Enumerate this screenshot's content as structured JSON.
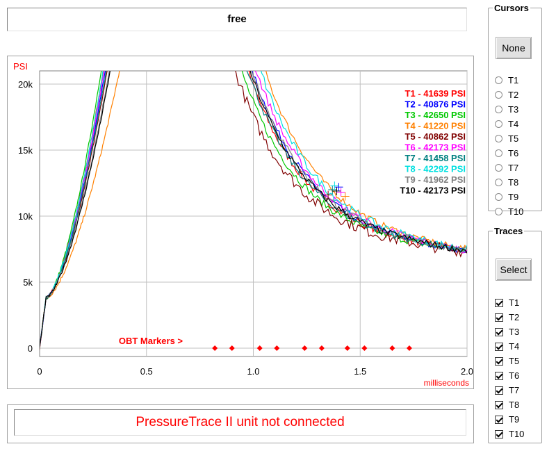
{
  "title": "free",
  "status_message": "PressureTrace II unit not connected",
  "chart": {
    "y_unit_label": "PSI",
    "x_unit_label": "milliseconds",
    "y_ticks": [
      "0",
      "5k",
      "10k",
      "15k",
      "20k"
    ],
    "x_ticks": [
      "0",
      "0.5",
      "1.0",
      "1.5",
      "2.0"
    ],
    "obt_markers_label": "OBT Markers >",
    "obt_marker_positions_ms": [
      0.82,
      0.9,
      1.03,
      1.11,
      1.24,
      1.32,
      1.44,
      1.52,
      1.65,
      1.73
    ],
    "colors": {
      "grid": "#c0c0c0",
      "axis": "#000000",
      "label_red": "#ff0000",
      "marker": "#ff0000"
    }
  },
  "chart_data": {
    "type": "line",
    "xlabel": "milliseconds",
    "ylabel": "PSI",
    "xlim": [
      0,
      2.0
    ],
    "ylim": [
      0,
      21000
    ],
    "series": [
      {
        "name": "T1",
        "peak_label": "41639 PSI",
        "color": "#ff0000",
        "rise_offset": 0.0,
        "tail_shift": 0.0,
        "jitter": 300
      },
      {
        "name": "T2",
        "peak_label": "40876 PSI",
        "color": "#0000ff",
        "rise_offset": 0.01,
        "tail_shift": 0.02,
        "jitter": 260
      },
      {
        "name": "T3",
        "peak_label": "42650 PSI",
        "color": "#00c800",
        "rise_offset": -0.01,
        "tail_shift": -0.03,
        "jitter": 280
      },
      {
        "name": "T4",
        "peak_label": "41220 PSI",
        "color": "#ff8000",
        "rise_offset": 0.08,
        "tail_shift": 0.08,
        "jitter": 240
      },
      {
        "name": "T5",
        "peak_label": "40862 PSI",
        "color": "#800000",
        "rise_offset": 0.02,
        "tail_shift": -0.06,
        "jitter": 420
      },
      {
        "name": "T6",
        "peak_label": "42173 PSI",
        "color": "#ff00ff",
        "rise_offset": 0.005,
        "tail_shift": 0.04,
        "jitter": 300
      },
      {
        "name": "T7",
        "peak_label": "41458 PSI",
        "color": "#008080",
        "rise_offset": 0.015,
        "tail_shift": 0.0,
        "jitter": 260
      },
      {
        "name": "T8",
        "peak_label": "42292 PSI",
        "color": "#00e0e0",
        "rise_offset": 0.0,
        "tail_shift": 0.06,
        "jitter": 320
      },
      {
        "name": "T9",
        "peak_label": "41962 PSI",
        "color": "#808080",
        "rise_offset": 0.03,
        "tail_shift": 0.02,
        "jitter": 280
      },
      {
        "name": "T10",
        "peak_label": "42173 PSI",
        "color": "#000000",
        "rise_offset": 0.035,
        "tail_shift": 0.01,
        "jitter": 260
      }
    ],
    "grid": true,
    "legend_placement": "top-right"
  },
  "cursors": {
    "title": "Cursors",
    "none_button": "None",
    "options": [
      "T1",
      "T2",
      "T3",
      "T4",
      "T5",
      "T6",
      "T7",
      "T8",
      "T9",
      "T10"
    ],
    "selected": null
  },
  "traces": {
    "title": "Traces",
    "select_button": "Select",
    "options": [
      "T1",
      "T2",
      "T3",
      "T4",
      "T5",
      "T6",
      "T7",
      "T8",
      "T9",
      "T10"
    ],
    "checked": [
      true,
      true,
      true,
      true,
      true,
      true,
      true,
      true,
      true,
      true
    ]
  }
}
